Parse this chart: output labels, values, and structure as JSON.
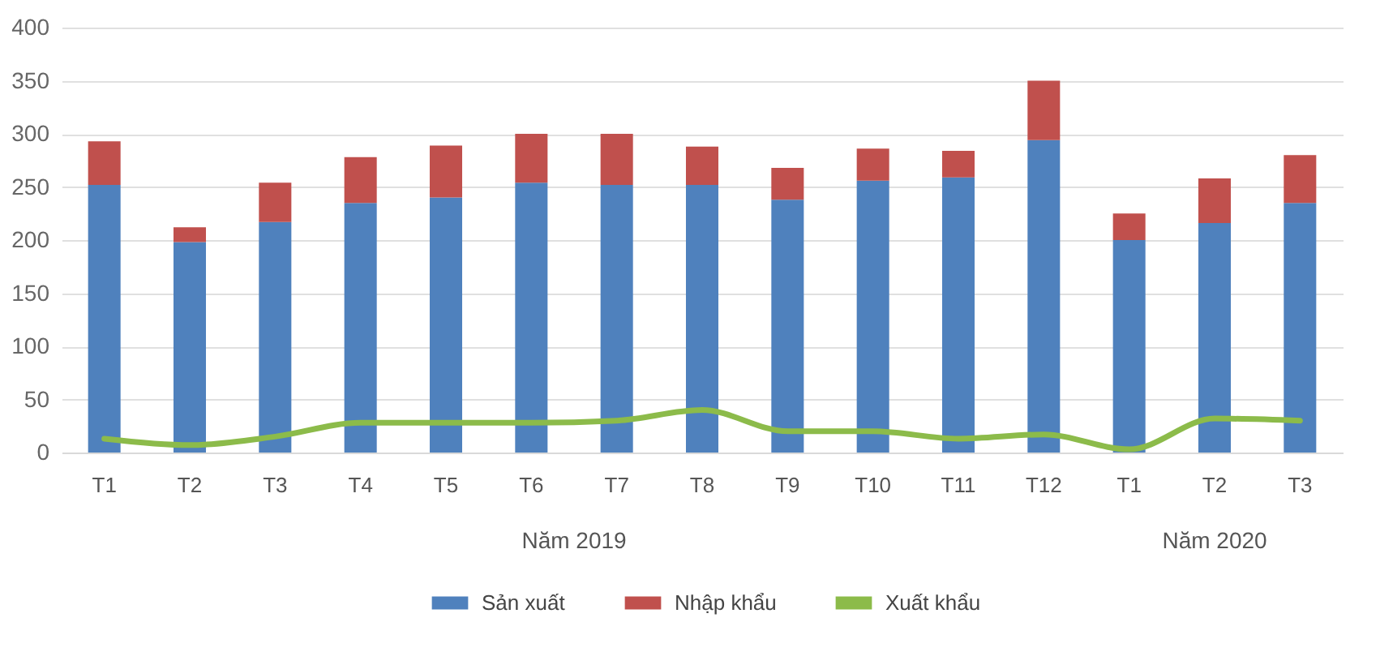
{
  "chart_data": {
    "type": "bar",
    "stacked": true,
    "categories": [
      "T1",
      "T2",
      "T3",
      "T4",
      "T5",
      "T6",
      "T7",
      "T8",
      "T9",
      "T10",
      "T11",
      "T12",
      "T1",
      "T2",
      "T3"
    ],
    "series": [
      {
        "name": "Sản xuất",
        "color": "#4f81bd",
        "values": [
          252,
          198,
          217,
          235,
          240,
          254,
          252,
          252,
          238,
          256,
          259,
          294,
          200,
          216,
          235
        ]
      },
      {
        "name": "Nhập khẩu",
        "color": "#c0504d",
        "values": [
          41,
          14,
          37,
          43,
          49,
          46,
          48,
          36,
          30,
          30,
          25,
          56,
          25,
          42,
          45
        ]
      },
      {
        "name": "Xuất khẩu",
        "type": "line",
        "color": "#8cbb4a",
        "values": [
          13,
          7,
          15,
          28,
          28,
          28,
          30,
          40,
          20,
          20,
          13,
          17,
          3,
          32,
          30
        ]
      }
    ],
    "ylim": [
      0,
      400
    ],
    "yticks": [
      0,
      50,
      100,
      150,
      200,
      250,
      300,
      350,
      400
    ],
    "grid": "y",
    "legend": "bottom",
    "annotations": [
      "Năm 2019",
      "Năm 2020"
    ]
  }
}
